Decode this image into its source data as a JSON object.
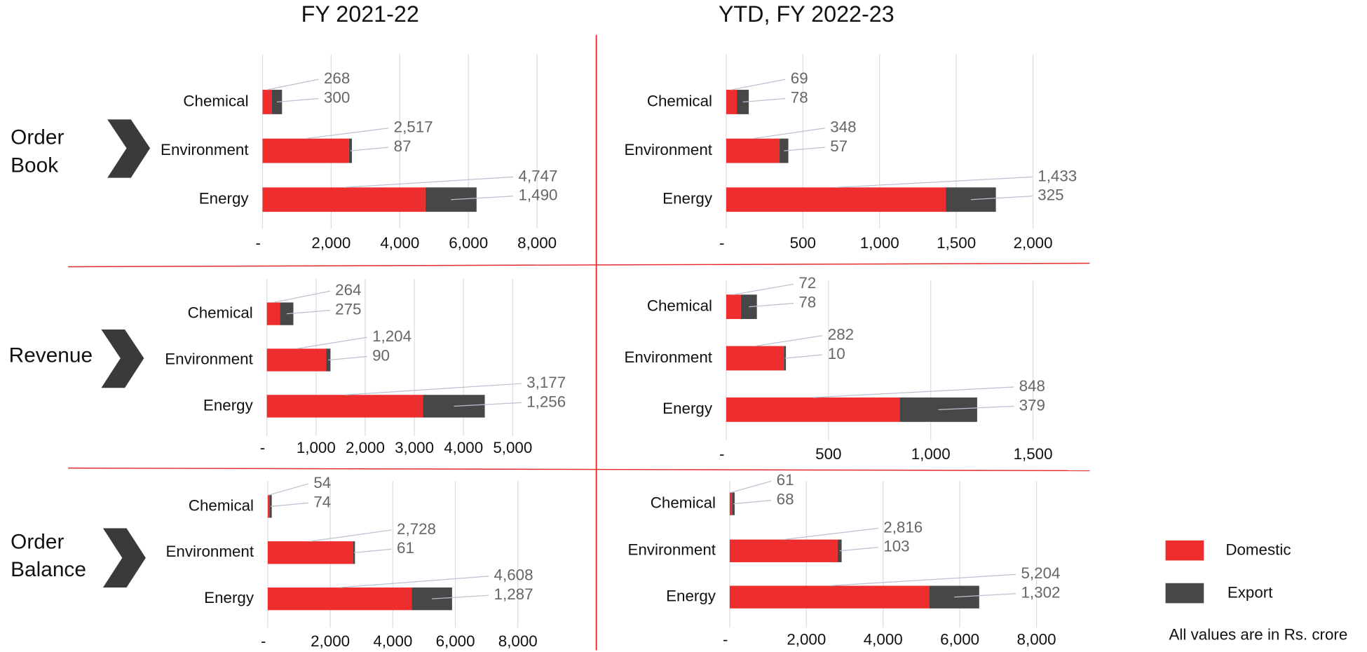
{
  "columns": [
    "FY 2021-22",
    "YTD, FY 2022-23"
  ],
  "rows": [
    [
      "Order",
      "Book"
    ],
    [
      "Revenue"
    ],
    [
      "Order",
      "Balance"
    ]
  ],
  "note": "All values are in Rs. crore",
  "chart_data": [
    {
      "type": "bar",
      "orientation": "horizontal",
      "categories": [
        "Chemical",
        "Environment",
        "Energy"
      ],
      "series": [
        {
          "name": "Domestic",
          "color": "#ee2e2e",
          "values": [
            268,
            2517,
            4747
          ],
          "value_labels": [
            "268",
            "2,517",
            "4,747"
          ]
        },
        {
          "name": "Export",
          "color": "#474747",
          "values": [
            300,
            87,
            1490
          ],
          "value_labels": [
            "300",
            "87",
            "1,490"
          ]
        }
      ],
      "xlim": [
        0,
        8000
      ],
      "xticks": [
        {
          "value": 0,
          "label": "-"
        },
        {
          "value": 2000,
          "label": "2,000"
        },
        {
          "value": 4000,
          "label": "4,000"
        },
        {
          "value": 6000,
          "label": "6,000"
        },
        {
          "value": 8000,
          "label": "8,000"
        }
      ],
      "grid": true
    },
    {
      "type": "bar",
      "orientation": "horizontal",
      "categories": [
        "Chemical",
        "Environment",
        "Energy"
      ],
      "series": [
        {
          "name": "Domestic",
          "color": "#ee2e2e",
          "values": [
            69,
            348,
            1433
          ],
          "value_labels": [
            "69",
            "348",
            "1,433"
          ]
        },
        {
          "name": "Export",
          "color": "#474747",
          "values": [
            78,
            57,
            325
          ],
          "value_labels": [
            "78",
            "57",
            "325"
          ]
        }
      ],
      "xlim": [
        0,
        2000
      ],
      "xticks": [
        {
          "value": 0,
          "label": "-"
        },
        500,
        {
          "value": 1000,
          "label": "1,000"
        },
        {
          "value": 1500,
          "label": "1,500"
        },
        {
          "value": 2000,
          "label": "2,000"
        }
      ],
      "grid": true
    },
    {
      "type": "bar",
      "orientation": "horizontal",
      "categories": [
        "Chemical",
        "Environment",
        "Energy"
      ],
      "series": [
        {
          "name": "Domestic",
          "color": "#ee2e2e",
          "values": [
            264,
            1204,
            3177
          ],
          "value_labels": [
            "264",
            "1,204",
            "3,177"
          ]
        },
        {
          "name": "Export",
          "color": "#474747",
          "values": [
            275,
            90,
            1256
          ],
          "value_labels": [
            "275",
            "90",
            "1,256"
          ]
        }
      ],
      "xlim": [
        0,
        5000
      ],
      "xticks": [
        {
          "value": 0,
          "label": "-"
        },
        {
          "value": 1000,
          "label": "1,000"
        },
        {
          "value": 2000,
          "label": "2,000"
        },
        {
          "value": 3000,
          "label": "3,000"
        },
        {
          "value": 4000,
          "label": "4,000"
        },
        {
          "value": 5000,
          "label": "5,000"
        }
      ],
      "grid": true
    },
    {
      "type": "bar",
      "orientation": "horizontal",
      "categories": [
        "Chemical",
        "Environment",
        "Energy"
      ],
      "series": [
        {
          "name": "Domestic",
          "color": "#ee2e2e",
          "values": [
            72,
            282,
            848
          ],
          "value_labels": [
            "72",
            "282",
            "848"
          ]
        },
        {
          "name": "Export",
          "color": "#474747",
          "values": [
            78,
            10,
            379
          ],
          "value_labels": [
            "78",
            "10",
            "379"
          ]
        }
      ],
      "xlim": [
        0,
        1500
      ],
      "xticks": [
        {
          "value": 0,
          "label": "-"
        },
        500,
        {
          "value": 1000,
          "label": "1,000"
        },
        {
          "value": 1500,
          "label": "1,500"
        }
      ],
      "grid": true
    },
    {
      "type": "bar",
      "orientation": "horizontal",
      "categories": [
        "Chemical",
        "Environment",
        "Energy"
      ],
      "series": [
        {
          "name": "Domestic",
          "color": "#ee2e2e",
          "values": [
            54,
            2728,
            4608
          ],
          "value_labels": [
            "54",
            "2,728",
            "4,608"
          ]
        },
        {
          "name": "Export",
          "color": "#474747",
          "values": [
            74,
            61,
            1287
          ],
          "value_labels": [
            "74",
            "61",
            "1,287"
          ]
        }
      ],
      "xlim": [
        0,
        8000
      ],
      "xticks": [
        {
          "value": 0,
          "label": "-"
        },
        {
          "value": 2000,
          "label": "2,000"
        },
        {
          "value": 4000,
          "label": "4,000"
        },
        {
          "value": 6000,
          "label": "6,000"
        },
        {
          "value": 8000,
          "label": "8,000"
        }
      ],
      "grid": true
    },
    {
      "type": "bar",
      "orientation": "horizontal",
      "categories": [
        "Chemical",
        "Environment",
        "Energy"
      ],
      "series": [
        {
          "name": "Domestic",
          "color": "#ee2e2e",
          "values": [
            61,
            2816,
            5204
          ],
          "value_labels": [
            "61",
            "2,816",
            "5,204"
          ]
        },
        {
          "name": "Export",
          "color": "#474747",
          "values": [
            68,
            103,
            1302
          ],
          "value_labels": [
            "68",
            "103",
            "1,302"
          ]
        }
      ],
      "xlim": [
        0,
        8000
      ],
      "xticks": [
        {
          "value": 0,
          "label": "-"
        },
        {
          "value": 2000,
          "label": "2,000"
        },
        {
          "value": 4000,
          "label": "4,000"
        },
        {
          "value": 6000,
          "label": "6,000"
        },
        {
          "value": 8000,
          "label": "8,000"
        }
      ],
      "grid": true
    }
  ]
}
